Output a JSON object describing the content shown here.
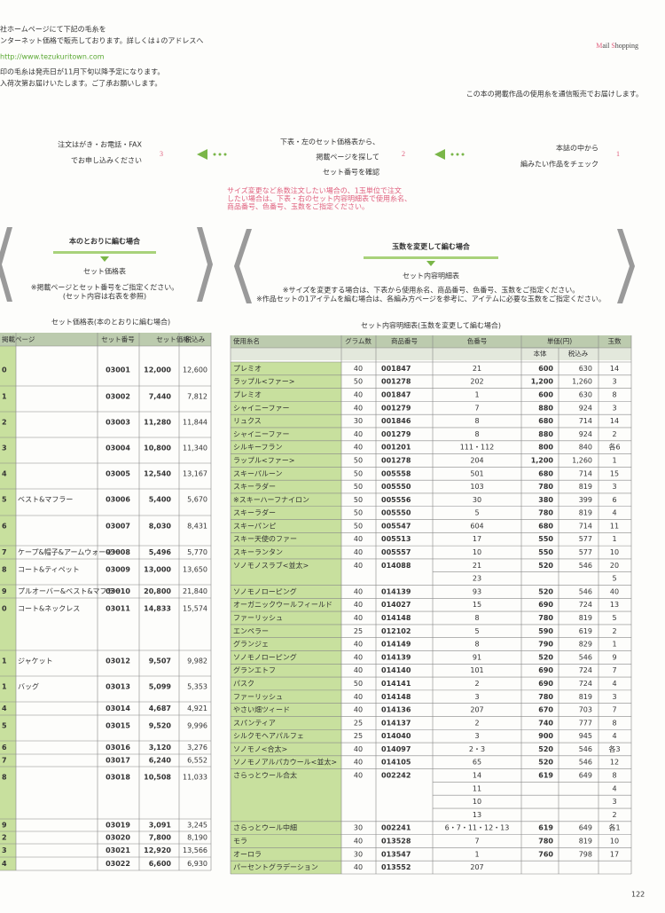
{
  "intro": [
    "社ホームページにて下記の毛糸を",
    "ンターネット価格で販売しております。詳しくは↓のアドレスへ",
    "http://www.tezukuritown.com",
    "印の毛糸は発売日が11月下旬以降予定になります。",
    "入荷次第お届けいたします。ご了承お願いします。"
  ],
  "title": "Mail Shopping",
  "subtitle": "この本の掲載作品の使用糸を通信販売でお届けします。",
  "steps": [
    {
      "number": "3",
      "lines": [
        "注文はがき・お電話・FAX",
        "でお申し込みください"
      ]
    },
    {
      "number": "2",
      "lines": [
        "下表・左のセット価格表から、",
        "掲載ページを探して",
        "セット番号を確認"
      ]
    },
    {
      "number": "1",
      "lines": [
        "本誌の中から",
        "編みたい作品をチェック"
      ]
    }
  ],
  "step_note": [
    "サイズ変更など糸数注文したい場合の、1玉単位で注文",
    "したい場合は、下表・右のセット内容明細表で使用糸名、",
    "商品番号、色番号、玉数をご指定ください。"
  ],
  "left_box": {
    "heading": "本のとおりに編む場合",
    "label": "セット価格表",
    "notes": [
      "※掲載ページとセット番号をご指定ください。",
      "(セット内容は右表を参照)"
    ]
  },
  "right_box": {
    "heading": "玉数を変更して編む場合",
    "label": "セット内容明細表",
    "notes": [
      "※サイズを変更する場合は、下表から使用糸名、商品番号、色番号、玉数をご指定ください。",
      "※作品セットの1アイテムを編む場合は、各編み方ページを参考に、アイテムに必要な玉数をご指定ください。"
    ]
  },
  "left_table": {
    "title": "セット価格表(本のとおりに編む場合)",
    "headers": [
      "掲載ページ",
      "セット番号",
      "セット価格",
      "税込み"
    ],
    "rows": [
      {
        "page": "0",
        "set": "03001",
        "price": "12,000",
        "tax": "12,600"
      },
      {
        "page": "1",
        "set": "03002",
        "price": "7,440",
        "tax": "7,812"
      },
      {
        "page": "2",
        "set": "03003",
        "price": "11,280",
        "tax": "11,844"
      },
      {
        "page": "3",
        "set": "03004",
        "price": "10,800",
        "tax": "11,340"
      },
      {
        "page": "4",
        "set": "03005",
        "price": "12,540",
        "tax": "13,167"
      },
      {
        "page": "5",
        "item": "ベスト&マフラー",
        "set": "03006",
        "price": "5,400",
        "tax": "5,670"
      },
      {
        "page": "6",
        "set": "03007",
        "price": "8,030",
        "tax": "8,431"
      },
      {
        "page": "7",
        "item": "ケープ&帽子&アームウォーマー",
        "set": "03008",
        "price": "5,496",
        "tax": "5,770"
      },
      {
        "page": "8",
        "item": "コート&ティペット",
        "set": "03009",
        "price": "13,000",
        "tax": "13,650"
      },
      {
        "page": "9",
        "item": "プルオーバー&ベスト&マフラー",
        "set": "03010",
        "price": "20,800",
        "tax": "21,840"
      },
      {
        "page": "0",
        "item": "コート&ネックレス",
        "set": "03011",
        "price": "14,833",
        "tax": "15,574"
      },
      {
        "page": "1",
        "item": "ジャケット",
        "set": "03012",
        "price": "9,507",
        "tax": "9,982"
      },
      {
        "page": "1",
        "item": "バッグ",
        "set": "03013",
        "price": "5,099",
        "tax": "5,353"
      },
      {
        "page": "4",
        "set": "03014",
        "price": "4,687",
        "tax": "4,921"
      },
      {
        "page": "5",
        "set": "03015",
        "price": "9,520",
        "tax": "9,996"
      },
      {
        "page": "6",
        "set": "03016",
        "price": "3,120",
        "tax": "3,276"
      },
      {
        "page": "7",
        "set": "03017",
        "price": "6,240",
        "tax": "6,552"
      },
      {
        "page": "8",
        "set": "03018",
        "price": "10,508",
        "tax": "11,033"
      },
      {
        "page": "9",
        "set": "03019",
        "price": "3,091",
        "tax": "3,245"
      },
      {
        "page": "2",
        "set": "03020",
        "price": "7,800",
        "tax": "8,190"
      },
      {
        "page": "3",
        "set": "03021",
        "price": "12,920",
        "tax": "13,566"
      },
      {
        "page": "4",
        "set": "03022",
        "price": "6,600",
        "tax": "6,930"
      }
    ]
  },
  "right_table": {
    "title": "セット内容明細表(玉数を変更して編む場合)",
    "headers": [
      "使用糸名",
      "グラム数",
      "商品番号",
      "色番号",
      "単価(円)",
      "玉数"
    ],
    "subheaders": [
      "本体",
      "税込み"
    ],
    "rows": [
      {
        "name": "プレミオ",
        "g": "40",
        "code": "001847",
        "color": "21",
        "price": "600",
        "tax": "630",
        "qty": "14"
      },
      {
        "name": "ラップル<ファー>",
        "g": "50",
        "code": "001278",
        "color": "202",
        "price": "1,200",
        "tax": "1,260",
        "qty": "3"
      },
      {
        "name": "プレミオ",
        "g": "40",
        "code": "001847",
        "color": "1",
        "price": "600",
        "tax": "630",
        "qty": "8"
      },
      {
        "name": "シャイニーファー",
        "g": "40",
        "code": "001279",
        "color": "7",
        "price": "880",
        "tax": "924",
        "qty": "3"
      },
      {
        "name": "リュクス",
        "g": "30",
        "code": "001846",
        "color": "8",
        "price": "680",
        "tax": "714",
        "qty": "14"
      },
      {
        "name": "シャイニーファー",
        "g": "40",
        "code": "001279",
        "color": "8",
        "price": "880",
        "tax": "924",
        "qty": "2"
      },
      {
        "name": "シルキーフラン",
        "g": "40",
        "code": "001201",
        "color": "111・112",
        "price": "800",
        "tax": "840",
        "qty": "各6"
      },
      {
        "name": "ラップル<ファー>",
        "g": "50",
        "code": "001278",
        "color": "204",
        "price": "1,200",
        "tax": "1,260",
        "qty": "1"
      },
      {
        "name": "スキーパルーン",
        "g": "50",
        "code": "005558",
        "color": "501",
        "price": "680",
        "tax": "714",
        "qty": "15"
      },
      {
        "name": "スキーラダー",
        "g": "50",
        "code": "005550",
        "color": "103",
        "price": "780",
        "tax": "819",
        "qty": "3"
      },
      {
        "name": "※スキーハーフナイロン",
        "g": "50",
        "code": "005556",
        "color": "30",
        "price": "380",
        "tax": "399",
        "qty": "6"
      },
      {
        "name": "スキーラダー",
        "g": "50",
        "code": "005550",
        "color": "5",
        "price": "780",
        "tax": "819",
        "qty": "4"
      },
      {
        "name": "スキーパンピ",
        "g": "50",
        "code": "005547",
        "color": "604",
        "price": "680",
        "tax": "714",
        "qty": "11"
      },
      {
        "name": "スキー天使のファー",
        "g": "40",
        "code": "005513",
        "color": "17",
        "price": "550",
        "tax": "577",
        "qty": "1"
      },
      {
        "name": "スキーランタン",
        "g": "40",
        "code": "005557",
        "color": "10",
        "price": "550",
        "tax": "577",
        "qty": "10"
      },
      {
        "name": "ソノモノスラブ<並太>",
        "g": "40",
        "code": "014088",
        "color": "21",
        "price": "520",
        "tax": "546",
        "qty": "20"
      },
      {
        "color": "23",
        "qty": "5"
      },
      {
        "name": "ソノモノローピング",
        "g": "40",
        "code": "014139",
        "color": "93",
        "price": "520",
        "tax": "546",
        "qty": "40"
      },
      {
        "name": "オーガニックウールフィールド",
        "g": "40",
        "code": "014027",
        "color": "15",
        "price": "690",
        "tax": "724",
        "qty": "13"
      },
      {
        "name": "ファーリッシュ",
        "g": "40",
        "code": "014148",
        "color": "8",
        "price": "780",
        "tax": "819",
        "qty": "5"
      },
      {
        "name": "エンペラー",
        "g": "25",
        "code": "012102",
        "color": "5",
        "price": "590",
        "tax": "619",
        "qty": "2"
      },
      {
        "name": "グランジェ",
        "g": "40",
        "code": "014149",
        "color": "8",
        "price": "790",
        "tax": "829",
        "qty": "1"
      },
      {
        "name": "ソノモノローピング",
        "g": "40",
        "code": "014139",
        "color": "91",
        "price": "520",
        "tax": "546",
        "qty": "9"
      },
      {
        "name": "グランエトフ",
        "g": "40",
        "code": "014140",
        "color": "101",
        "price": "690",
        "tax": "724",
        "qty": "7"
      },
      {
        "name": "パスク",
        "g": "50",
        "code": "014141",
        "color": "2",
        "price": "690",
        "tax": "724",
        "qty": "4"
      },
      {
        "name": "ファーリッシュ",
        "g": "40",
        "code": "014148",
        "color": "3",
        "price": "780",
        "tax": "819",
        "qty": "3"
      },
      {
        "name": "やさい畑ツィード",
        "g": "40",
        "code": "014136",
        "color": "207",
        "price": "670",
        "tax": "703",
        "qty": "7"
      },
      {
        "name": "スパンティア",
        "g": "25",
        "code": "014137",
        "color": "2",
        "price": "740",
        "tax": "777",
        "qty": "8"
      },
      {
        "name": "シルクモヘアパルフェ",
        "g": "25",
        "code": "014040",
        "color": "3",
        "price": "900",
        "tax": "945",
        "qty": "4"
      },
      {
        "name": "ソノモノ<合太>",
        "g": "40",
        "code": "014097",
        "color": "2・3",
        "price": "520",
        "tax": "546",
        "qty": "各3"
      },
      {
        "name": "ソノモノアルパカウール<並太>",
        "g": "40",
        "code": "014105",
        "color": "65",
        "price": "520",
        "tax": "546",
        "qty": "12"
      },
      {
        "name": "さらっとウール合太",
        "g": "40",
        "code": "002242",
        "color": "14",
        "price": "619",
        "tax": "649",
        "qty": "8"
      },
      {
        "color": "11",
        "qty": "4"
      },
      {
        "color": "10",
        "qty": "3"
      },
      {
        "color": "13",
        "qty": "2"
      },
      {
        "name": "さらっとウール中細",
        "g": "30",
        "code": "002241",
        "color": "6・7・11・12・13",
        "price": "619",
        "tax": "649",
        "qty": "各1"
      },
      {
        "name": "モラ",
        "g": "40",
        "code": "013528",
        "color": "7",
        "price": "780",
        "tax": "819",
        "qty": "10"
      },
      {
        "name": "オーロラ",
        "g": "30",
        "code": "013547",
        "color": "1",
        "price": "760",
        "tax": "798",
        "qty": "17"
      },
      {
        "name": "パーセントグラデーション",
        "g": "40",
        "code": "013552",
        "color": "207"
      }
    ]
  },
  "page_number": "122"
}
